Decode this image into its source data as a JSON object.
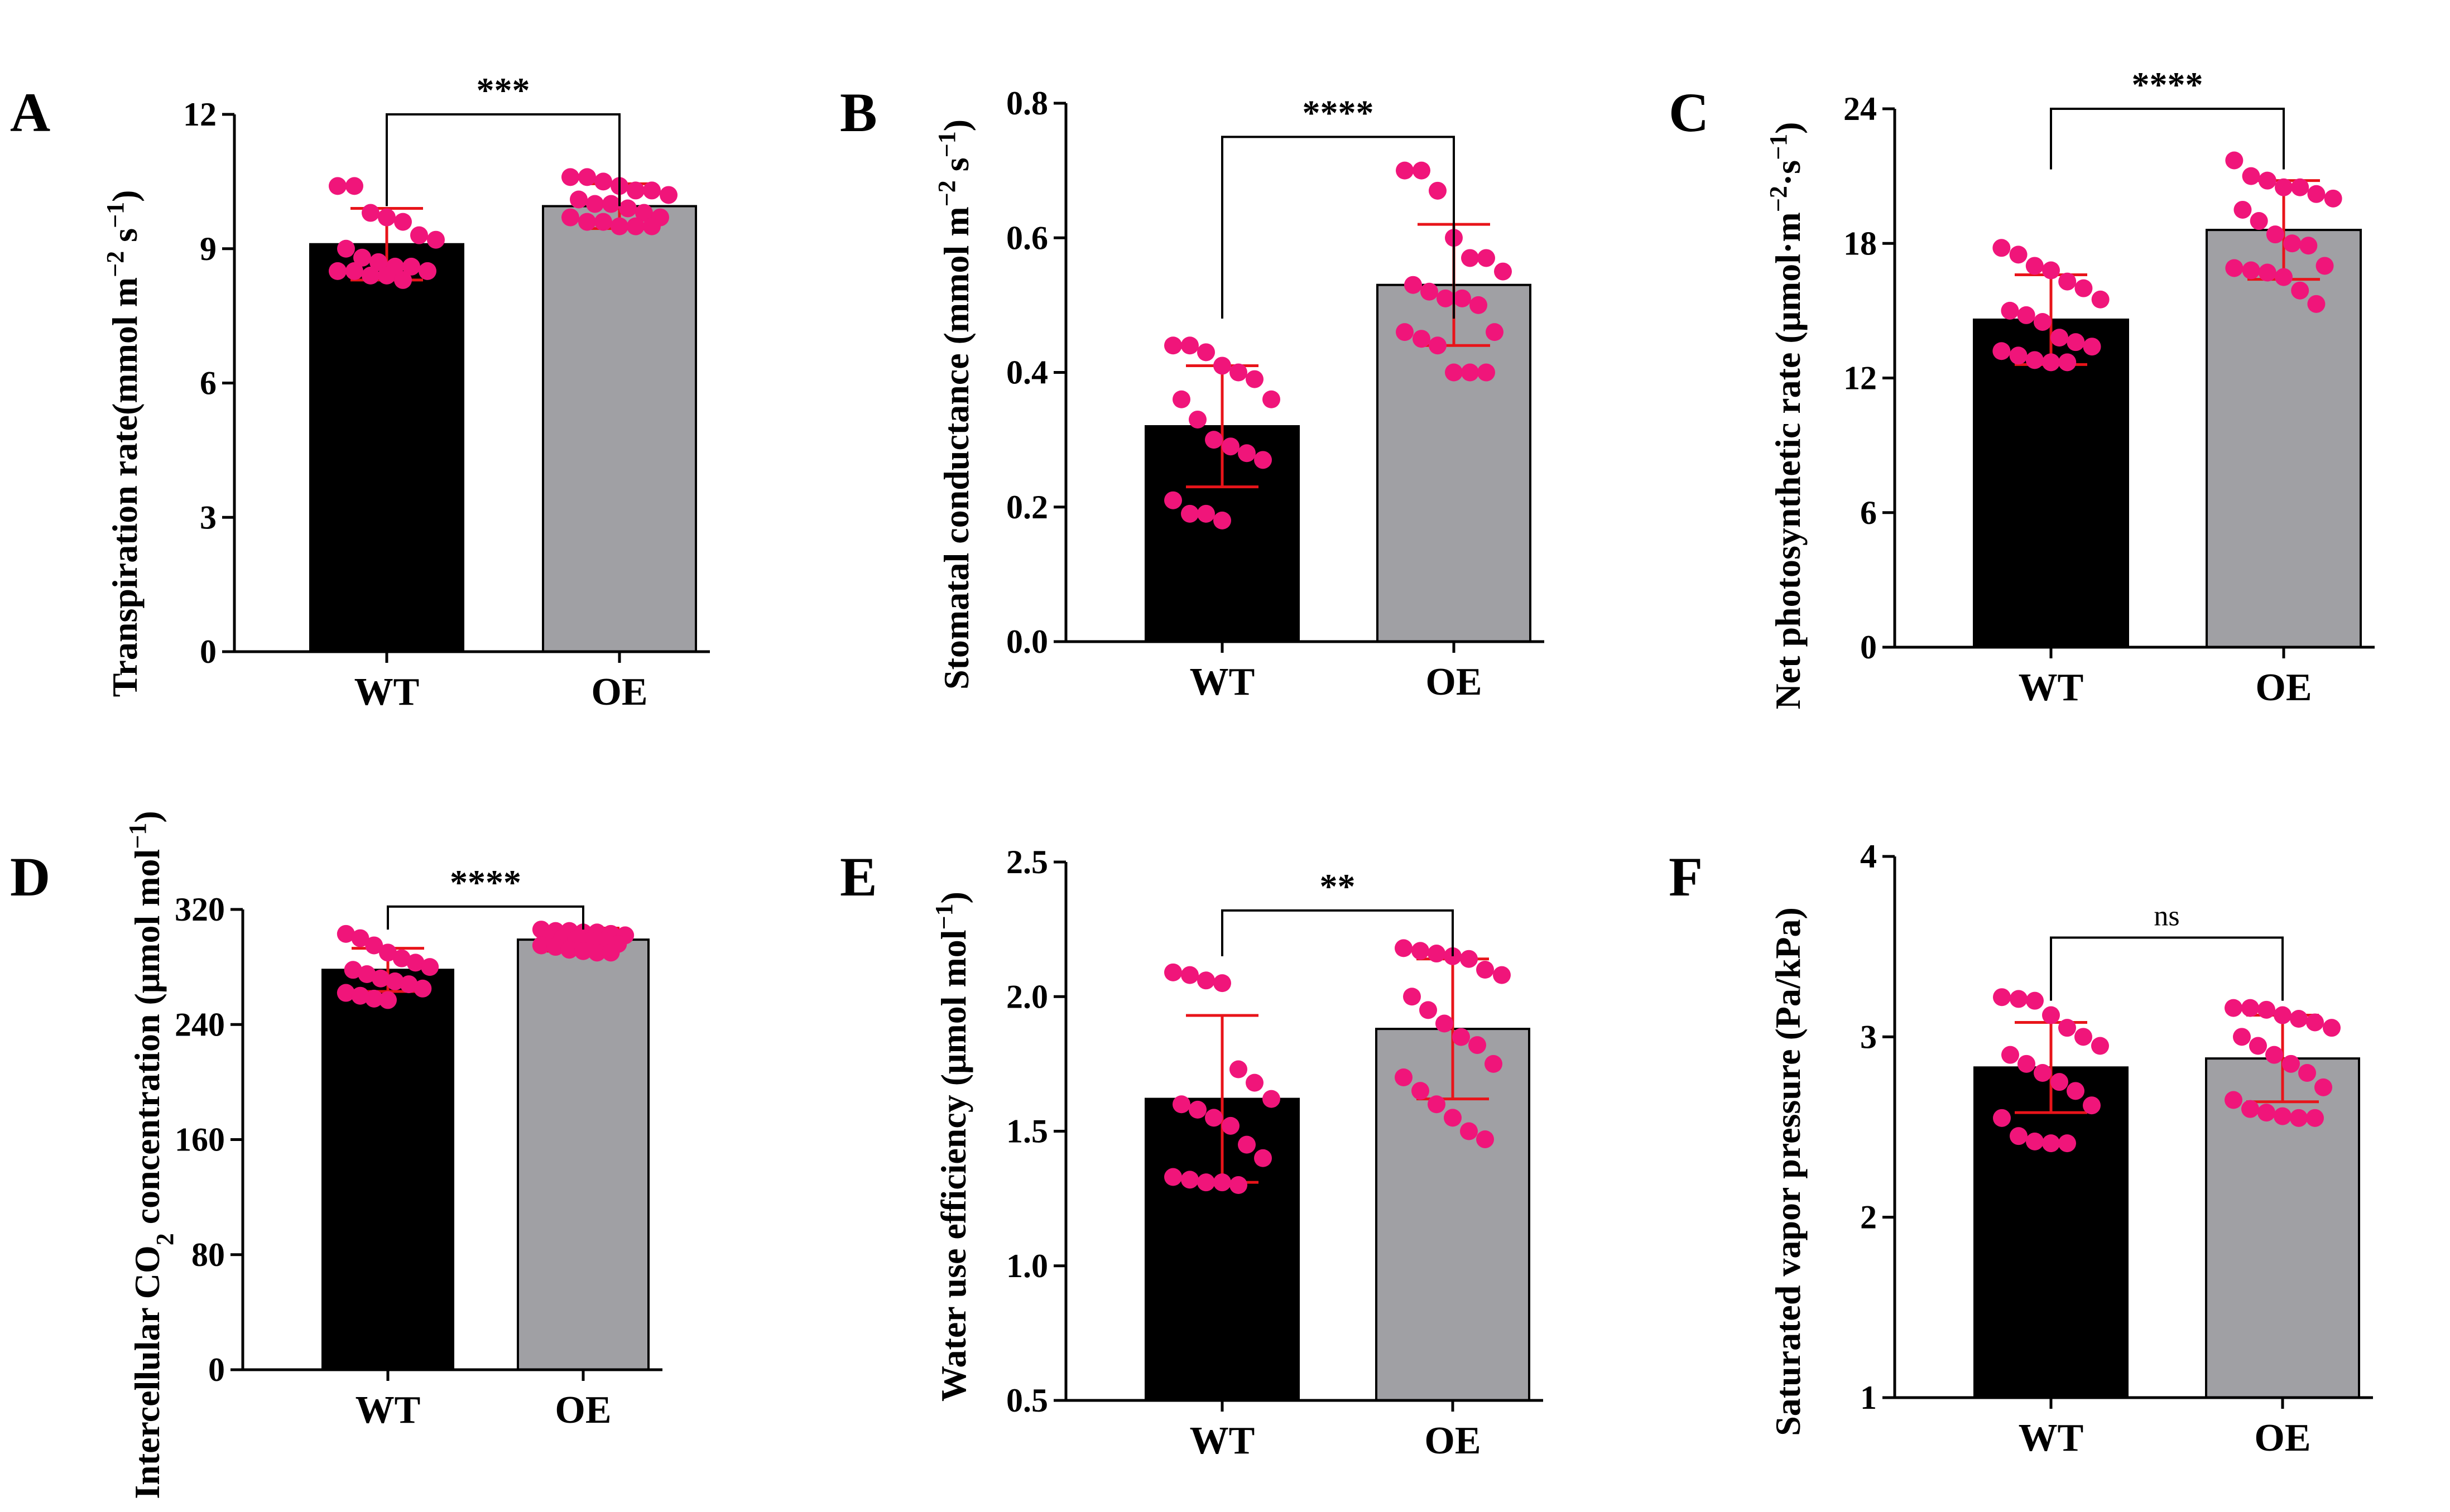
{
  "colors": {
    "wt_bar": "#000000",
    "oe_bar": "#a0a0a4",
    "points": "#f0157a",
    "error_bars": "#e8141a",
    "axis": "#000000"
  },
  "chart_data": [
    {
      "panel": "A",
      "type": "bar",
      "ylabel": "Transpiration rate(mmol m−2 s−1)",
      "ylabel_parts": [
        {
          "t": "Transpiration rate(mmol m",
          "s": "base"
        },
        {
          "t": "−2",
          "s": "sup"
        },
        {
          "t": " s",
          "s": "base"
        },
        {
          "t": "−1",
          "s": "sup"
        },
        {
          "t": ")",
          "s": "base"
        }
      ],
      "categories": [
        "WT",
        "OE"
      ],
      "ylim": [
        0,
        12
      ],
      "yticks": [
        "0",
        "3",
        "6",
        "9",
        "12"
      ],
      "series": [
        {
          "name": "mean",
          "values": [
            9.1,
            9.95
          ]
        }
      ],
      "error": [
        0.8,
        0.5
      ],
      "points": [
        [
          10.4,
          10.4,
          9.8,
          9.6,
          9.3,
          9.2,
          9.0,
          8.8,
          8.6,
          8.6,
          8.5,
          8.5,
          8.4,
          8.4,
          8.3,
          9.7,
          8.7,
          8.5
        ],
        [
          10.6,
          10.6,
          10.5,
          10.4,
          10.3,
          10.3,
          10.2,
          10.1,
          10.0,
          10.0,
          9.9,
          9.8,
          9.7,
          9.7,
          9.6,
          9.6,
          9.5,
          9.5,
          9.5
        ]
      ],
      "significance": "***",
      "sig_y": 12.0,
      "sig_drop": 9.95
    },
    {
      "panel": "B",
      "type": "bar",
      "ylabel": "Stomatal conductance (mmol m−2 s−1)",
      "ylabel_parts": [
        {
          "t": "Stomatal conductance (mmol m",
          "s": "base"
        },
        {
          "t": "−2",
          "s": "sup"
        },
        {
          "t": " s",
          "s": "base"
        },
        {
          "t": "−1",
          "s": "sup"
        },
        {
          "t": ")",
          "s": "base"
        }
      ],
      "categories": [
        "WT",
        "OE"
      ],
      "ylim": [
        0.0,
        0.8
      ],
      "yticks": [
        "0.0",
        "0.2",
        "0.4",
        "0.6",
        "0.8"
      ],
      "series": [
        {
          "name": "mean",
          "values": [
            0.32,
            0.53
          ]
        }
      ],
      "error": [
        0.09,
        0.09
      ],
      "points": [
        [
          0.44,
          0.44,
          0.43,
          0.4,
          0.39,
          0.36,
          0.36,
          0.33,
          0.3,
          0.29,
          0.28,
          0.27,
          0.21,
          0.19,
          0.19,
          0.18,
          0.41
        ],
        [
          0.7,
          0.7,
          0.67,
          0.6,
          0.57,
          0.57,
          0.53,
          0.51,
          0.51,
          0.5,
          0.46,
          0.46,
          0.45,
          0.44,
          0.4,
          0.4,
          0.4,
          0.55,
          0.52
        ]
      ],
      "significance": "****",
      "sig_y": 0.75,
      "sig_drop": 0.48
    },
    {
      "panel": "C",
      "type": "bar",
      "ylabel": "Net photosynthetic rate (μmol·m−2·s−1)",
      "ylabel_parts": [
        {
          "t": "Net photosynthetic rate (μmol·m",
          "s": "base"
        },
        {
          "t": "−2",
          "s": "sup"
        },
        {
          "t": "·s",
          "s": "base"
        },
        {
          "t": "−1",
          "s": "sup"
        },
        {
          "t": ")",
          "s": "base"
        }
      ],
      "categories": [
        "WT",
        "OE"
      ],
      "ylim": [
        0,
        24
      ],
      "yticks": [
        "0",
        "6",
        "12",
        "18",
        "24"
      ],
      "series": [
        {
          "name": "mean",
          "values": [
            14.6,
            18.6
          ]
        }
      ],
      "error": [
        2.0,
        2.2
      ],
      "points": [
        [
          17.8,
          17.5,
          17.0,
          16.8,
          16.3,
          15.5,
          15.0,
          14.8,
          14.5,
          13.6,
          13.4,
          13.2,
          13.0,
          12.8,
          12.7,
          12.7,
          16.0,
          13.8
        ],
        [
          21.7,
          21.0,
          20.8,
          20.5,
          20.5,
          20.2,
          20.0,
          19.5,
          18.4,
          18.0,
          17.9,
          17.0,
          16.9,
          16.8,
          16.7,
          16.5,
          15.9,
          15.3,
          19.0
        ]
      ],
      "significance": "****",
      "sig_y": 24.0,
      "sig_drop": 21.3
    },
    {
      "panel": "D",
      "type": "bar",
      "ylabel": "Intercellular CO2 concentration (μmol mol−1)",
      "ylabel_parts": [
        {
          "t": "Intercellular CO",
          "s": "base"
        },
        {
          "t": "2",
          "s": "sub"
        },
        {
          "t": " concentration (μmol mol",
          "s": "base"
        },
        {
          "t": "−1",
          "s": "sup"
        },
        {
          "t": ")",
          "s": "base"
        }
      ],
      "categories": [
        "WT",
        "OE"
      ],
      "ylim": [
        0,
        320
      ],
      "yticks": [
        "0",
        "80",
        "160",
        "240",
        "320"
      ],
      "series": [
        {
          "name": "mean",
          "values": [
            278,
            299
          ]
        }
      ],
      "error": [
        15,
        8
      ],
      "points": [
        [
          303,
          300,
          295,
          290,
          286,
          283,
          280,
          278,
          275,
          272,
          270,
          268,
          265,
          262,
          260,
          258,
          257
        ],
        [
          306,
          305,
          305,
          304,
          304,
          303,
          302,
          300,
          300,
          299,
          298,
          298,
          296,
          295,
          294,
          292,
          291,
          290,
          290
        ]
      ],
      "significance": "****",
      "sig_y": 322,
      "sig_drop": 306
    },
    {
      "panel": "E",
      "type": "bar",
      "ylabel": "Water use efficiency  (μmol mol−1)",
      "ylabel_parts": [
        {
          "t": "Water use efficiency  (μmol mol",
          "s": "base"
        },
        {
          "t": "−1",
          "s": "sup"
        },
        {
          "t": ")",
          "s": "base"
        }
      ],
      "categories": [
        "WT",
        "OE"
      ],
      "ylim": [
        0.5,
        2.5
      ],
      "yticks": [
        "0.5",
        "1.0",
        "1.5",
        "2.0",
        "2.5"
      ],
      "series": [
        {
          "name": "mean",
          "values": [
            1.62,
            1.88
          ]
        }
      ],
      "error": [
        0.31,
        0.26
      ],
      "points": [
        [
          2.09,
          2.08,
          2.06,
          2.05,
          1.73,
          1.68,
          1.62,
          1.6,
          1.58,
          1.55,
          1.52,
          1.45,
          1.4,
          1.33,
          1.32,
          1.31,
          1.3,
          1.31
        ],
        [
          2.18,
          2.17,
          2.16,
          2.15,
          2.14,
          2.1,
          2.08,
          2.0,
          1.95,
          1.9,
          1.85,
          1.82,
          1.75,
          1.7,
          1.65,
          1.6,
          1.55,
          1.5,
          1.47
        ]
      ],
      "significance": "**",
      "sig_y": 2.32,
      "sig_drop": 2.15
    },
    {
      "panel": "F",
      "type": "bar",
      "ylabel": "Saturated vapor pressure (Pa/kPa)",
      "ylabel_parts": [
        {
          "t": "Saturated vapor pressure (Pa/kPa)",
          "s": "base"
        }
      ],
      "categories": [
        "WT",
        "OE"
      ],
      "ylim": [
        1,
        4
      ],
      "yticks": [
        "1",
        "2",
        "3",
        "4"
      ],
      "series": [
        {
          "name": "mean",
          "values": [
            2.83,
            2.88
          ]
        }
      ],
      "error": [
        0.25,
        0.24
      ],
      "points": [
        [
          3.22,
          3.21,
          3.2,
          3.12,
          3.05,
          3.0,
          2.95,
          2.9,
          2.85,
          2.8,
          2.75,
          2.7,
          2.62,
          2.55,
          2.45,
          2.42,
          2.41,
          2.41
        ],
        [
          3.16,
          3.16,
          3.15,
          3.12,
          3.1,
          3.08,
          3.05,
          3.0,
          2.95,
          2.9,
          2.85,
          2.8,
          2.72,
          2.65,
          2.6,
          2.58,
          2.56,
          2.55,
          2.55
        ]
      ],
      "significance": "ns",
      "sig_y": 3.55,
      "sig_drop": 3.2
    }
  ]
}
